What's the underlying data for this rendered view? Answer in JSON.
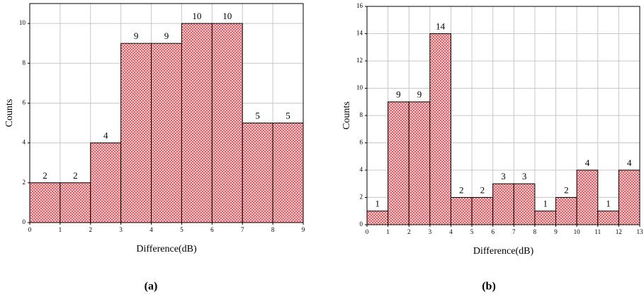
{
  "chart_data": [
    {
      "type": "histogram",
      "label": "(a)",
      "xlabel": "Difference(dB)",
      "ylabel": "Counts",
      "bins": [
        0,
        1,
        2,
        3,
        4,
        5,
        6,
        7,
        8,
        9
      ],
      "counts": [
        2,
        2,
        4,
        9,
        9,
        10,
        10,
        5,
        5
      ],
      "xlim": [
        0,
        9
      ],
      "xticks": [
        0,
        1,
        2,
        3,
        4,
        5,
        6,
        7,
        8,
        9
      ],
      "ylim": [
        0,
        11
      ],
      "yticks": [
        0,
        2,
        4,
        6,
        8,
        10
      ],
      "grid": true,
      "color": "#e0303a"
    },
    {
      "type": "histogram",
      "label": "(b)",
      "xlabel": "Difference(dB)",
      "ylabel": "Counts",
      "bins": [
        0,
        1,
        2,
        3,
        4,
        5,
        6,
        7,
        8,
        9,
        10,
        11,
        12,
        13
      ],
      "counts": [
        1,
        9,
        9,
        14,
        2,
        2,
        3,
        3,
        1,
        2,
        4,
        1,
        4
      ],
      "xlim": [
        0,
        13
      ],
      "xticks": [
        0,
        1,
        2,
        3,
        4,
        5,
        6,
        7,
        8,
        9,
        10,
        11,
        12,
        13
      ],
      "ylim": [
        0,
        16
      ],
      "yticks": [
        0,
        2,
        4,
        6,
        8,
        10,
        12,
        14,
        16
      ],
      "grid": true,
      "color": "#e0303a"
    }
  ]
}
